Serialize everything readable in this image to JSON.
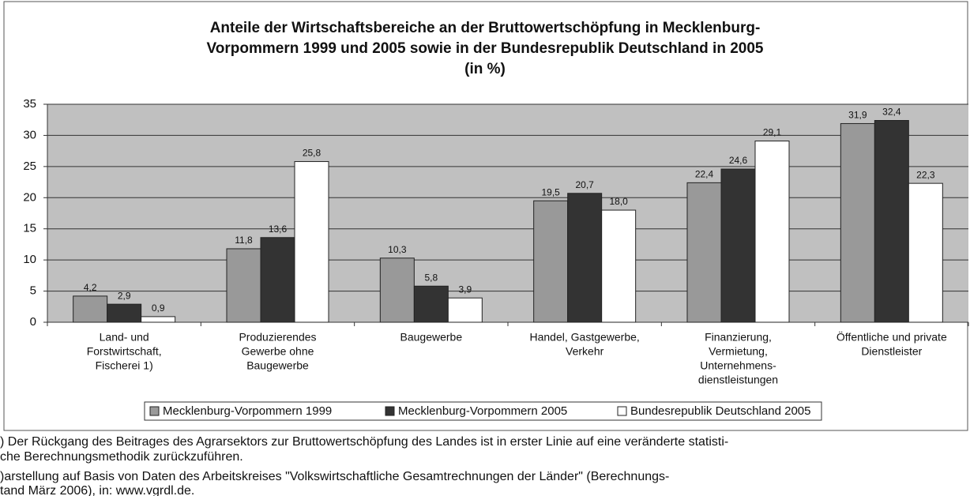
{
  "chart_data": {
    "type": "bar",
    "title": [
      "Anteile der Wirtschaftsbereiche an der Bruttowertschöpfung in Mecklenburg-",
      "Vorpommern 1999 und 2005 sowie in der Bundesrepublik Deutschland in 2005",
      "(in %)"
    ],
    "categories": [
      [
        "Land- und",
        "Forstwirtschaft,",
        "Fischerei 1)"
      ],
      [
        "Produzierendes",
        "Gewerbe ohne",
        "Baugewerbe"
      ],
      [
        "Baugewerbe"
      ],
      [
        "Handel, Gastgewerbe,",
        "Verkehr"
      ],
      [
        "Finanzierung,",
        "Vermietung,",
        "Unternehmens-",
        "dienstleistungen"
      ],
      [
        "Öffentliche und private",
        "Dienstleister"
      ]
    ],
    "series": [
      {
        "name": "Mecklenburg-Vorpommern 1999",
        "color": "#999999",
        "values": [
          4.2,
          11.8,
          10.3,
          19.5,
          22.4,
          31.9
        ],
        "value_labels": [
          "4,2",
          "11,8",
          "10,3",
          "19,5",
          "22,4",
          "31,9"
        ]
      },
      {
        "name": "Mecklenburg-Vorpommern 2005",
        "color": "#333333",
        "values": [
          2.9,
          13.6,
          5.8,
          20.7,
          24.6,
          32.4
        ],
        "value_labels": [
          "2,9",
          "13,6",
          "5,8",
          "20,7",
          "24,6",
          "32,4"
        ]
      },
      {
        "name": "Bundesrepublik Deutschland 2005",
        "color": "#ffffff",
        "values": [
          0.9,
          25.8,
          3.9,
          18.0,
          29.1,
          22.3
        ],
        "value_labels": [
          "0,9",
          "25,8",
          "3,9",
          "18,0",
          "29,1",
          "22,3"
        ]
      }
    ],
    "ylim": [
      0,
      35
    ],
    "yticks": [
      0,
      5,
      10,
      15,
      20,
      25,
      30,
      35
    ],
    "grid": true,
    "footnotes": [
      ") Der Rückgang des Beitrages des Agrarsektors zur Bruttowertschöpfung des Landes ist in erster Linie auf eine veränderte statisti-",
      "che Berechnungsmethodik zurückzuführen.",
      ")arstellung auf Basis von Daten des Arbeitskreises \"Volkswirtschaftliche Gesamtrechnungen der Länder\" (Berechnungs-",
      "tand März 2006), in: www.vgrdl.de."
    ]
  }
}
